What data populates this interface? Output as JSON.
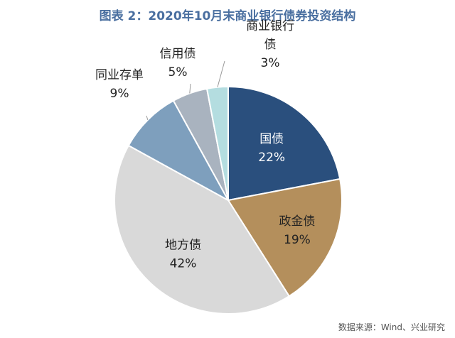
{
  "chart_data": {
    "type": "pie",
    "title": "图表 2：2020年10月末商业银行债券投资结构",
    "source": "数据来源：Wind、兴业研究",
    "slices": [
      {
        "name": "国债",
        "value": 22,
        "display": "22%",
        "color": "#2a4f7d",
        "text_color": "#ffffff"
      },
      {
        "name": "政金债",
        "value": 19,
        "display": "19%",
        "color": "#b48f5c",
        "text_color": "#222222"
      },
      {
        "name": "地方债",
        "value": 42,
        "display": "42%",
        "color": "#d9d9d9",
        "text_color": "#222222"
      },
      {
        "name": "同业存单",
        "value": 9,
        "display": "9%",
        "color": "#7e9fbd",
        "text_color": "#222222"
      },
      {
        "name": "信用债",
        "value": 5,
        "display": "5%",
        "color": "#a9b3bf",
        "text_color": "#222222"
      },
      {
        "name": "商业银行债",
        "label_lines": [
          "商业银行",
          "债"
        ],
        "value": 3,
        "display": "3%",
        "color": "#b4dde0",
        "text_color": "#222222"
      }
    ]
  }
}
